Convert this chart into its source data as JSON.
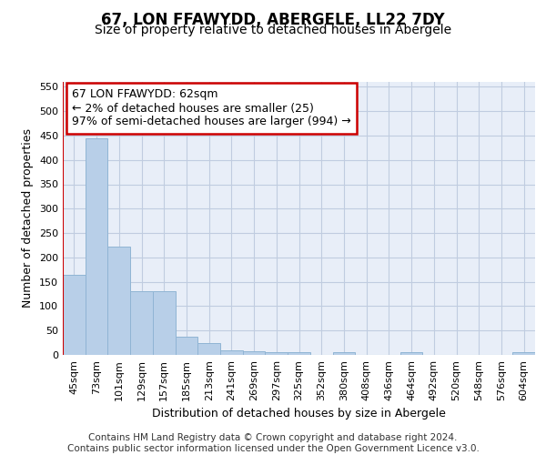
{
  "title": "67, LON FFAWYDD, ABERGELE, LL22 7DY",
  "subtitle": "Size of property relative to detached houses in Abergele",
  "xlabel": "Distribution of detached houses by size in Abergele",
  "ylabel": "Number of detached properties",
  "bar_labels": [
    "45sqm",
    "73sqm",
    "101sqm",
    "129sqm",
    "157sqm",
    "185sqm",
    "213sqm",
    "241sqm",
    "269sqm",
    "297sqm",
    "325sqm",
    "352sqm",
    "380sqm",
    "408sqm",
    "436sqm",
    "464sqm",
    "492sqm",
    "520sqm",
    "548sqm",
    "576sqm",
    "604sqm"
  ],
  "bar_values": [
    165,
    445,
    222,
    130,
    130,
    37,
    25,
    10,
    7,
    6,
    5,
    0,
    5,
    0,
    0,
    5,
    0,
    0,
    0,
    0,
    5
  ],
  "bar_color": "#b8cfe8",
  "bar_edge_color": "#90b4d4",
  "vline_color": "#cc0000",
  "annotation_text": "67 LON FFAWYDD: 62sqm\n← 2% of detached houses are smaller (25)\n97% of semi-detached houses are larger (994) →",
  "annotation_box_color": "#ffffff",
  "annotation_box_edge": "#cc0000",
  "ylim": [
    0,
    560
  ],
  "yticks": [
    0,
    50,
    100,
    150,
    200,
    250,
    300,
    350,
    400,
    450,
    500,
    550
  ],
  "plot_bg_color": "#e8eef8",
  "grid_color": "#c0cce0",
  "footer": "Contains HM Land Registry data © Crown copyright and database right 2024.\nContains public sector information licensed under the Open Government Licence v3.0.",
  "title_fontsize": 12,
  "subtitle_fontsize": 10,
  "axis_label_fontsize": 9,
  "tick_fontsize": 8,
  "annotation_fontsize": 9,
  "footer_fontsize": 7.5
}
